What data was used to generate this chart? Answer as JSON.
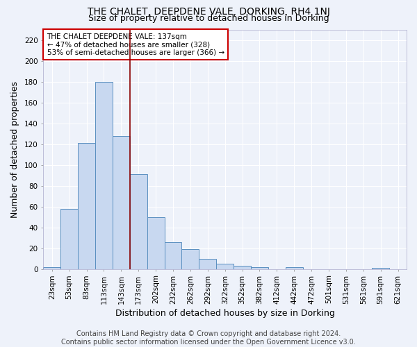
{
  "title": "THE CHALET, DEEPDENE VALE, DORKING, RH4 1NJ",
  "subtitle": "Size of property relative to detached houses in Dorking",
  "xlabel": "Distribution of detached houses by size in Dorking",
  "ylabel": "Number of detached properties",
  "categories": [
    "23sqm",
    "53sqm",
    "83sqm",
    "113sqm",
    "143sqm",
    "173sqm",
    "202sqm",
    "232sqm",
    "262sqm",
    "292sqm",
    "322sqm",
    "352sqm",
    "382sqm",
    "412sqm",
    "442sqm",
    "472sqm",
    "501sqm",
    "531sqm",
    "561sqm",
    "591sqm",
    "621sqm"
  ],
  "values": [
    2,
    58,
    121,
    180,
    128,
    91,
    50,
    26,
    19,
    10,
    5,
    3,
    2,
    0,
    2,
    0,
    0,
    0,
    0,
    1,
    0
  ],
  "bar_color": "#c8d8f0",
  "bar_edge_color": "#5a8fc0",
  "vline_x": 4.5,
  "vline_color": "#8b0000",
  "ylim": [
    0,
    230
  ],
  "yticks": [
    0,
    20,
    40,
    60,
    80,
    100,
    120,
    140,
    160,
    180,
    200,
    220
  ],
  "annotation_text": "THE CHALET DEEPDENE VALE: 137sqm\n← 47% of detached houses are smaller (328)\n53% of semi-detached houses are larger (366) →",
  "annotation_box_color": "#ffffff",
  "annotation_box_edge": "#cc0000",
  "footer": "Contains HM Land Registry data © Crown copyright and database right 2024.\nContains public sector information licensed under the Open Government Licence v3.0.",
  "bg_color": "#eef2fa",
  "grid_color": "#ffffff",
  "title_fontsize": 10,
  "subtitle_fontsize": 9,
  "axis_label_fontsize": 9,
  "tick_fontsize": 7.5,
  "footer_fontsize": 7,
  "annotation_fontsize": 7.5
}
